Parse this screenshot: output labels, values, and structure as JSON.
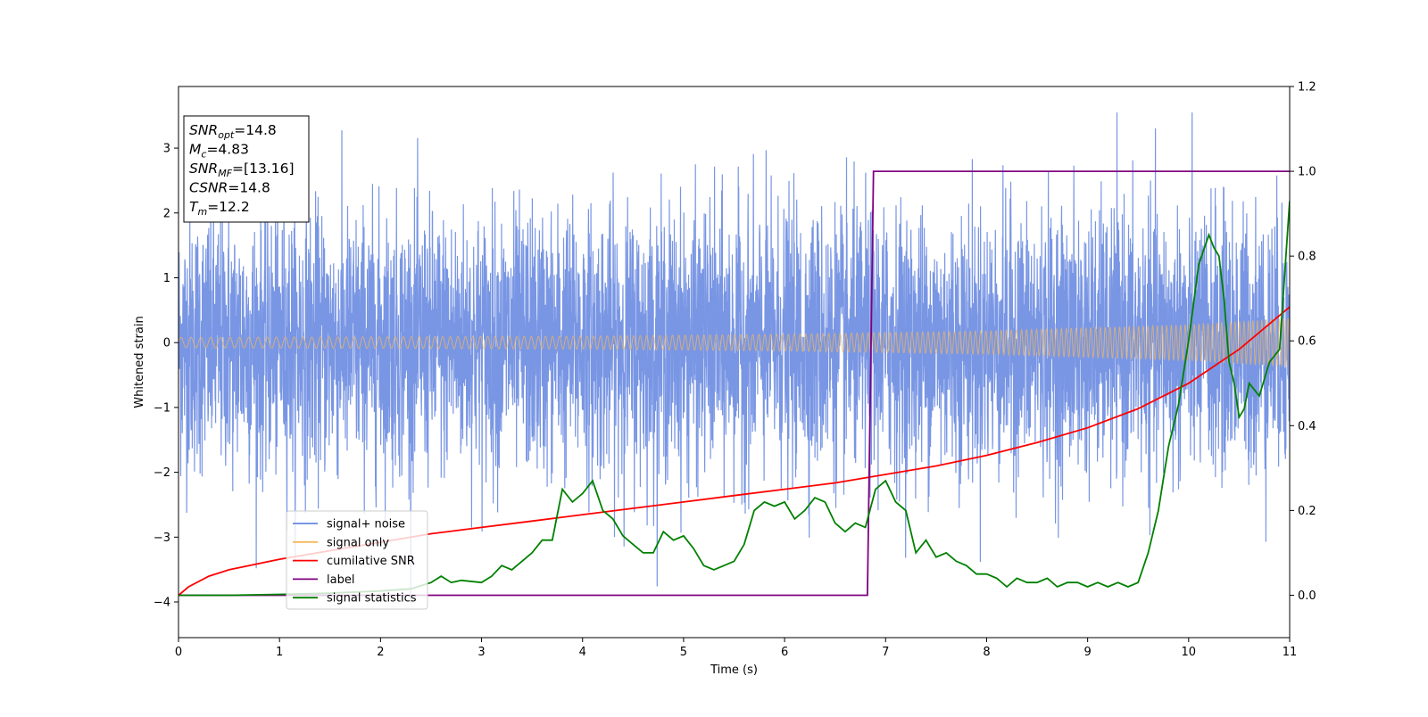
{
  "chart_data": {
    "type": "line",
    "xlabel": "Time (s)",
    "ylabel": "Whitened strain",
    "xlim": [
      0,
      11
    ],
    "ylim": [
      -4.55,
      3.95
    ],
    "y2lim": [
      -0.1,
      1.2
    ],
    "x_ticks": [
      "0",
      "1",
      "2",
      "3",
      "4",
      "5",
      "6",
      "7",
      "8",
      "9",
      "10",
      "11"
    ],
    "y_ticks": [
      "−4",
      "−3",
      "−2",
      "−1",
      "0",
      "1",
      "2",
      "3"
    ],
    "y2_ticks": [
      "0.0",
      "0.2",
      "0.4",
      "0.6",
      "0.8",
      "1.0",
      "1.2"
    ],
    "info_box": [
      {
        "sym": "SNR",
        "sub": "opt",
        "val": "=14.8"
      },
      {
        "sym": "M",
        "sub": "c",
        "val": "=4.83"
      },
      {
        "sym": "SNR",
        "sub": "MF",
        "val": "=[13.16]"
      },
      {
        "sym": "CSNR",
        "sub": "",
        "val": "=14.8"
      },
      {
        "sym": "T",
        "sub": "m",
        "val": "=12.2"
      }
    ],
    "legend": {
      "placement": "lower-left",
      "items": [
        {
          "label": "signal+ noise",
          "color": "#6688e0"
        },
        {
          "label": "signal only",
          "color": "#f5b85c"
        },
        {
          "label": "cumilative SNR",
          "color": "#ff0000"
        },
        {
          "label": "label",
          "color": "#800080"
        },
        {
          "label": "signal statistics",
          "color": "#008000"
        }
      ]
    },
    "series": [
      {
        "name": "signal+ noise",
        "axis": "left",
        "color": "#6688e0",
        "description_values": {
          "noise_std": 1.0,
          "approx_range": [
            -4.2,
            3.6
          ]
        }
      },
      {
        "name": "signal only",
        "axis": "left",
        "color": "#f5b85c",
        "amplitude_envelope": {
          "x": [
            0,
            2,
            4,
            6,
            8,
            10,
            11
          ],
          "y": [
            0.08,
            0.09,
            0.1,
            0.13,
            0.18,
            0.28,
            0.38
          ]
        }
      },
      {
        "name": "cumilative SNR",
        "axis": "right",
        "color": "#ff0000",
        "x": [
          0,
          0.1,
          0.3,
          0.5,
          1,
          1.5,
          2,
          2.5,
          3,
          3.5,
          4,
          4.5,
          5,
          5.5,
          6,
          6.5,
          7,
          7.5,
          8,
          8.5,
          9,
          9.5,
          10,
          10.5,
          11
        ],
        "y": [
          0.0,
          0.02,
          0.045,
          0.06,
          0.085,
          0.105,
          0.125,
          0.145,
          0.16,
          0.175,
          0.19,
          0.205,
          0.22,
          0.235,
          0.25,
          0.265,
          0.285,
          0.305,
          0.33,
          0.36,
          0.395,
          0.44,
          0.5,
          0.58,
          0.68
        ]
      },
      {
        "name": "label",
        "axis": "right",
        "color": "#800080",
        "x": [
          0,
          6.82,
          6.88,
          11
        ],
        "y": [
          0,
          0,
          1,
          1
        ]
      },
      {
        "name": "signal statistics",
        "axis": "right",
        "color": "#008000",
        "x": [
          0,
          0.5,
          1,
          1.5,
          2,
          2.3,
          2.5,
          2.6,
          2.7,
          2.8,
          3,
          3.1,
          3.2,
          3.3,
          3.4,
          3.5,
          3.6,
          3.7,
          3.8,
          3.9,
          4.0,
          4.1,
          4.2,
          4.3,
          4.4,
          4.5,
          4.6,
          4.7,
          4.8,
          4.9,
          5.0,
          5.1,
          5.2,
          5.3,
          5.4,
          5.5,
          5.6,
          5.7,
          5.8,
          5.9,
          6.0,
          6.1,
          6.2,
          6.3,
          6.4,
          6.5,
          6.6,
          6.7,
          6.8,
          6.9,
          7.0,
          7.1,
          7.2,
          7.3,
          7.4,
          7.5,
          7.6,
          7.7,
          7.8,
          7.9,
          8.0,
          8.1,
          8.2,
          8.3,
          8.4,
          8.5,
          8.6,
          8.7,
          8.8,
          8.9,
          9.0,
          9.1,
          9.2,
          9.3,
          9.4,
          9.5,
          9.6,
          9.7,
          9.8,
          9.9,
          10.0,
          10.1,
          10.2,
          10.25,
          10.3,
          10.35,
          10.4,
          10.45,
          10.5,
          10.55,
          10.6,
          10.7,
          10.8,
          10.9,
          11.0
        ],
        "y": [
          0,
          0.0,
          0.002,
          0.005,
          0.01,
          0.015,
          0.03,
          0.045,
          0.03,
          0.035,
          0.03,
          0.045,
          0.07,
          0.06,
          0.08,
          0.1,
          0.13,
          0.13,
          0.25,
          0.22,
          0.24,
          0.27,
          0.2,
          0.18,
          0.14,
          0.12,
          0.1,
          0.1,
          0.15,
          0.13,
          0.14,
          0.11,
          0.07,
          0.06,
          0.07,
          0.08,
          0.12,
          0.2,
          0.22,
          0.21,
          0.22,
          0.18,
          0.2,
          0.23,
          0.22,
          0.17,
          0.15,
          0.17,
          0.16,
          0.25,
          0.27,
          0.22,
          0.2,
          0.1,
          0.13,
          0.09,
          0.1,
          0.08,
          0.07,
          0.05,
          0.05,
          0.04,
          0.02,
          0.04,
          0.03,
          0.03,
          0.04,
          0.02,
          0.03,
          0.03,
          0.02,
          0.03,
          0.02,
          0.03,
          0.02,
          0.03,
          0.1,
          0.2,
          0.35,
          0.45,
          0.6,
          0.78,
          0.85,
          0.82,
          0.8,
          0.7,
          0.55,
          0.5,
          0.42,
          0.44,
          0.5,
          0.47,
          0.55,
          0.58,
          0.93
        ]
      }
    ]
  }
}
